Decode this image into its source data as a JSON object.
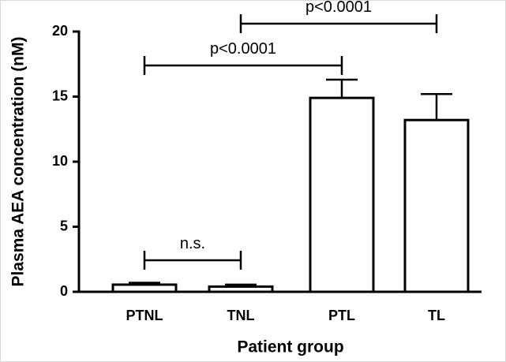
{
  "chart_data": {
    "type": "bar",
    "categories": [
      "PTNL",
      "TNL",
      "PTL",
      "TL"
    ],
    "values": [
      0.55,
      0.4,
      14.9,
      13.2
    ],
    "errors": [
      0.15,
      0.15,
      1.4,
      2.0
    ],
    "color": "#ffffff",
    "ylim": [
      0,
      20
    ],
    "yticks": [
      0,
      5,
      10,
      15,
      20
    ],
    "y_label": "Plasma AEA concentration (nM)",
    "x_label": "Patient group",
    "annotations": [
      {
        "text": "n.s.",
        "between": [
          "PTNL",
          "TNL"
        ]
      },
      {
        "text": "p<0.0001",
        "between": [
          "PTNL",
          "PTL"
        ]
      },
      {
        "text": "p<0.0001",
        "between": [
          "TNL",
          "TL"
        ]
      }
    ]
  }
}
